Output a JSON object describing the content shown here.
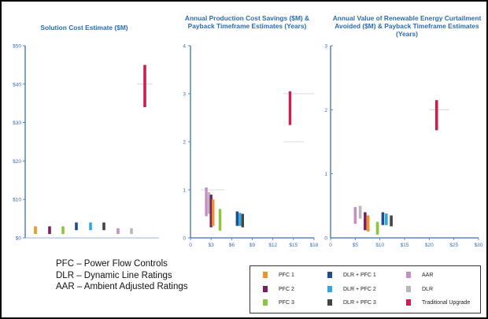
{
  "charts": [
    {
      "id": "cost",
      "title": "Solution Cost Estimate ($M)",
      "chart_data": {
        "type": "range-bar",
        "title": "Solution Cost Estimate ($M)",
        "ylim": [
          0,
          50
        ],
        "yticks": [
          "$0",
          "$10",
          "$20",
          "$30",
          "$40",
          "$50"
        ],
        "xlabel": "",
        "ylabel": "",
        "series": [
          {
            "name": "PFC 1",
            "color": "#f0932b",
            "low": 1,
            "high": 3
          },
          {
            "name": "PFC 2",
            "color": "#7b1f5e",
            "low": 1,
            "high": 3
          },
          {
            "name": "PFC 3",
            "color": "#8cc63f",
            "low": 1,
            "high": 3
          },
          {
            "name": "DLR + PFC 1",
            "color": "#1f4e8c",
            "low": 2,
            "high": 4
          },
          {
            "name": "DLR + PFC 2",
            "color": "#2fa8e0",
            "low": 2,
            "high": 4
          },
          {
            "name": "DLR + PFC 3",
            "color": "#444444",
            "low": 2,
            "high": 4
          },
          {
            "name": "AAR",
            "color": "#c58fc6",
            "low": 1,
            "high": 2.5
          },
          {
            "name": "DLR",
            "color": "#b8b8b8",
            "low": 1,
            "high": 2.5
          },
          {
            "name": "Traditional Upgrade",
            "color": "#cc1f4e",
            "low": 34,
            "high": 45
          }
        ]
      }
    },
    {
      "id": "savings",
      "title": "Annual Production Cost Savings ($M) & Payback Timeframe Estimates (Years)",
      "chart_data": {
        "type": "range-bar",
        "title": "Annual Production Cost Savings ($M) & Payback Timeframe Estimates (Years)",
        "xlim": [
          0,
          18
        ],
        "ylim": [
          0,
          4
        ],
        "xticks": [
          "0",
          "$3",
          "$6",
          "$9",
          "$12",
          "$15",
          "$18"
        ],
        "yticks": [
          "0",
          "1",
          "2",
          "3",
          "4"
        ],
        "series": [
          {
            "name": "AAR",
            "color": "#c58fc6",
            "x": 2.3,
            "low": 0.45,
            "high": 1.05
          },
          {
            "name": "DLR",
            "color": "#b8b8b8",
            "x": 2.7,
            "low": 0.5,
            "high": 0.95
          },
          {
            "name": "PFC 2",
            "color": "#7b1f5e",
            "x": 3.0,
            "low": 0.22,
            "high": 0.9
          },
          {
            "name": "PFC 1",
            "color": "#f0932b",
            "x": 3.3,
            "low": 0.25,
            "high": 0.8
          },
          {
            "name": "PFC 3",
            "color": "#8cc63f",
            "x": 4.3,
            "low": 0.15,
            "high": 0.6
          },
          {
            "name": "DLR + PFC 1",
            "color": "#1f4e8c",
            "x": 6.8,
            "low": 0.25,
            "high": 0.55
          },
          {
            "name": "DLR + PFC 2",
            "color": "#2fa8e0",
            "x": 7.2,
            "low": 0.25,
            "high": 0.52
          },
          {
            "name": "DLR + PFC 3",
            "color": "#444444",
            "x": 7.6,
            "low": 0.22,
            "high": 0.5
          },
          {
            "name": "Traditional Upgrade",
            "color": "#cc1f4e",
            "x": 14.5,
            "low": 2.35,
            "high": 3.05
          }
        ]
      }
    },
    {
      "id": "curtailment",
      "title": "Annual Value of Renewable Energy Curtailment Avoided ($M) & Payback Timeframe Estimates (Years)",
      "chart_data": {
        "type": "range-bar",
        "title": "Annual Value of Renewable Energy Curtailment Avoided ($M) & Payback Timeframe Estimates (Years)",
        "xlim": [
          0,
          30
        ],
        "ylim": [
          0,
          3
        ],
        "xticks": [
          "0",
          "$5",
          "$10",
          "$15",
          "$20",
          "$25",
          "$30"
        ],
        "yticks": [
          "0",
          "1",
          "2",
          "3"
        ],
        "series": [
          {
            "name": "AAR",
            "color": "#c58fc6",
            "x": 5.0,
            "low": 0.22,
            "high": 0.48
          },
          {
            "name": "DLR",
            "color": "#b8b8b8",
            "x": 6.0,
            "low": 0.3,
            "high": 0.5
          },
          {
            "name": "PFC 2",
            "color": "#7b1f5e",
            "x": 7.0,
            "low": 0.12,
            "high": 0.4
          },
          {
            "name": "PFC 1",
            "color": "#f0932b",
            "x": 7.6,
            "low": 0.1,
            "high": 0.35
          },
          {
            "name": "PFC 3",
            "color": "#8cc63f",
            "x": 9.5,
            "low": 0.05,
            "high": 0.25
          },
          {
            "name": "DLR + PFC 1",
            "color": "#1f4e8c",
            "x": 10.6,
            "low": 0.2,
            "high": 0.4
          },
          {
            "name": "DLR + PFC 2",
            "color": "#2fa8e0",
            "x": 11.3,
            "low": 0.2,
            "high": 0.38
          },
          {
            "name": "DLR + PFC 3",
            "color": "#444444",
            "x": 12.3,
            "low": 0.18,
            "high": 0.35
          },
          {
            "name": "Traditional Upgrade",
            "color": "#cc1f4e",
            "x": 21.5,
            "low": 1.68,
            "high": 2.15
          }
        ]
      }
    }
  ],
  "abbreviations": [
    "PFC – Power Flow Controls",
    "DLR – Dynamic Line Ratings",
    "AAR – Ambient Adjusted Ratings"
  ],
  "legend": [
    {
      "label": "PFC 1",
      "color": "#f0932b"
    },
    {
      "label": "DLR + PFC 1",
      "color": "#1f4e8c"
    },
    {
      "label": "AAR",
      "color": "#c58fc6"
    },
    {
      "label": "PFC 2",
      "color": "#7b1f5e"
    },
    {
      "label": "DLR + PFC 2",
      "color": "#2fa8e0"
    },
    {
      "label": "DLR",
      "color": "#b8b8b8"
    },
    {
      "label": "PFC 3",
      "color": "#8cc63f"
    },
    {
      "label": "DLR + PFC 3",
      "color": "#444444"
    },
    {
      "label": "Traditional Upgrade",
      "color": "#cc1f4e"
    }
  ]
}
